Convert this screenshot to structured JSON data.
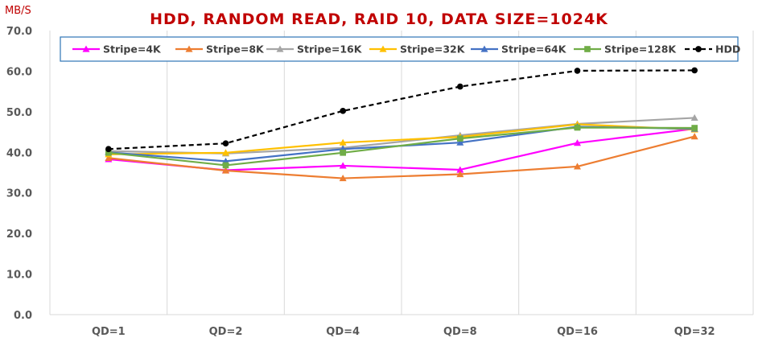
{
  "chart_data": {
    "type": "line",
    "title": "HDD, RANDOM READ, RAID 10, DATA SIZE=1024K",
    "ylabel": "MB/S",
    "xlabel": "",
    "categories": [
      "QD=1",
      "QD=2",
      "QD=4",
      "QD=8",
      "QD=16",
      "QD=32"
    ],
    "ylim": [
      0,
      70
    ],
    "yticks": [
      "0.0",
      "10.0",
      "20.0",
      "30.0",
      "40.0",
      "50.0",
      "60.0",
      "70.0"
    ],
    "grid": "vertical",
    "legend_position": "top",
    "series": [
      {
        "name": "Stripe=4K",
        "color": "#ff00ff",
        "marker": "triangle",
        "dash": false,
        "values": [
          38.3,
          35.6,
          36.7,
          35.7,
          42.3,
          45.8
        ]
      },
      {
        "name": "Stripe=8K",
        "color": "#ed7d31",
        "marker": "triangle",
        "dash": false,
        "values": [
          38.6,
          35.5,
          33.6,
          34.6,
          36.5,
          43.9
        ]
      },
      {
        "name": "Stripe=16K",
        "color": "#a5a5a5",
        "marker": "triangle",
        "dash": false,
        "values": [
          40.3,
          39.7,
          41.1,
          44.2,
          47.0,
          48.5
        ]
      },
      {
        "name": "Stripe=32K",
        "color": "#ffc000",
        "marker": "triangle",
        "dash": false,
        "values": [
          39.5,
          39.9,
          42.4,
          43.8,
          46.9,
          45.6
        ]
      },
      {
        "name": "Stripe=64K",
        "color": "#4472c4",
        "marker": "triangle",
        "dash": false,
        "values": [
          40.0,
          37.8,
          40.8,
          42.4,
          46.3,
          45.8
        ]
      },
      {
        "name": "Stripe=128K",
        "color": "#70ad47",
        "marker": "square",
        "dash": false,
        "values": [
          39.9,
          36.8,
          39.9,
          43.4,
          46.1,
          46.0
        ]
      },
      {
        "name": "HDD",
        "color": "#000000",
        "marker": "circle",
        "dash": true,
        "values": [
          40.8,
          42.2,
          50.2,
          56.2,
          60.1,
          60.2
        ]
      }
    ]
  },
  "colors": {
    "title": "#c00000",
    "axis_labels": "#595959",
    "gridline": "#d9d9d9",
    "legend_border": "#2e75b6"
  }
}
